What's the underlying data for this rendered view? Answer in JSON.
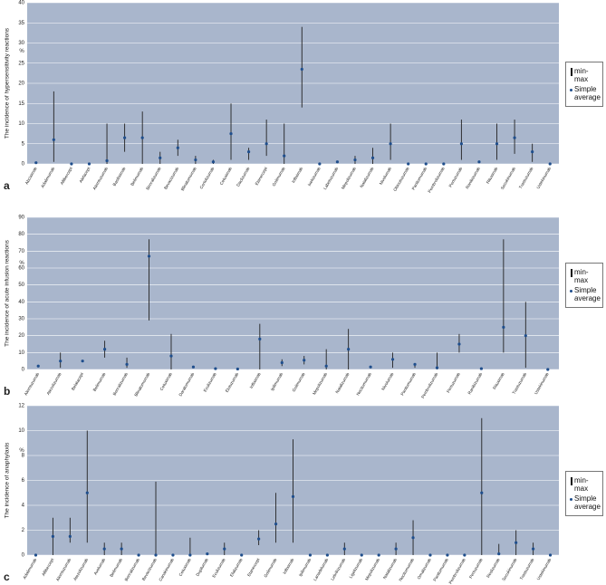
{
  "chart_data": [
    {
      "type": "range",
      "panel": "a",
      "y_label": "The incidence of hypersensitivity reactions",
      "unit": "%",
      "categories": [
        "Abciximab",
        "Adalimumab",
        "Aflibercept",
        "Alefacept",
        "Alemtuzumab",
        "Basiliximab",
        "Belimumab",
        "Benralizumab",
        "Bevacizumab",
        "Blinatumomab",
        "Certolizumab",
        "Cetuximab",
        "Daclizumab",
        "Etanercept",
        "Golimumab",
        "Infliximab",
        "Ixekizumab",
        "Labetuzumab",
        "Mepolizumab",
        "Natalizumab",
        "Nivolumab",
        "Obinutuzumab",
        "Panitumumab",
        "Pembrolizumab",
        "Pertuzumab",
        "Ranibizumab",
        "Rituximab",
        "Secukinumab",
        "Trastuzumab",
        "Ustekinumab"
      ],
      "series": [
        {
          "name": "Simple average",
          "color": "#1f4e8c",
          "values": [
            0.3,
            6,
            0,
            0,
            0.8,
            6.5,
            6.5,
            1.5,
            4,
            1,
            0.5,
            7.5,
            3,
            5,
            2,
            23.5,
            0,
            0.5,
            1,
            1.5,
            5,
            0,
            0,
            0,
            5,
            0.5,
            5,
            6.5,
            3,
            0
          ]
        }
      ],
      "range": {
        "name": "min-max",
        "color": "#222222",
        "min": [
          null,
          0.5,
          null,
          null,
          0,
          3,
          0,
          0,
          2,
          0,
          0,
          1,
          1,
          2,
          0,
          14,
          null,
          null,
          0,
          0,
          1,
          null,
          null,
          null,
          1,
          null,
          1,
          2.5,
          0.5,
          null
        ],
        "max": [
          null,
          18,
          null,
          null,
          10,
          10,
          13,
          3,
          6,
          2,
          1,
          15,
          4,
          11,
          10,
          34,
          null,
          null,
          2,
          4,
          10,
          null,
          null,
          null,
          11,
          null,
          10,
          11,
          5,
          null
        ]
      },
      "ylim": [
        0,
        40
      ],
      "yticks": [
        0,
        5,
        10,
        15,
        20,
        25,
        30,
        35,
        40
      ],
      "grid": true,
      "background": "#a9b6cc"
    },
    {
      "type": "range",
      "panel": "b",
      "y_label": "The incidence of acute infusion reactions",
      "unit": "%",
      "categories": [
        "Alemtuzumab",
        "Atezolizumab",
        "Belatacept",
        "Belimumab",
        "Benralizumab",
        "Blinatumomab",
        "Cetuximab",
        "Daratumumab",
        "Eculizumab",
        "Elotuzumab",
        "Infliximab",
        "Ipilimumab",
        "Golimumab",
        "Mepolizumab",
        "Natalizumab",
        "Necitumumab",
        "Nivolumab",
        "Panitumumab",
        "Pembrolizumab",
        "Pertuzumab",
        "Ranibizumab",
        "Rituximab",
        "Trastuzumab",
        "Ustekinumab"
      ],
      "series": [
        {
          "name": "Simple average",
          "color": "#1f4e8c",
          "values": [
            2,
            5,
            5,
            12,
            3,
            67,
            8,
            1.5,
            0.5,
            0.3,
            18,
            4,
            5.5,
            2,
            12,
            1.5,
            6,
            3,
            1,
            15,
            0.5,
            25,
            20,
            0
          ]
        }
      ],
      "range": {
        "name": "min-max",
        "color": "#222222",
        "min": [
          null,
          1,
          null,
          7,
          1,
          29,
          0,
          null,
          null,
          null,
          0,
          2,
          3,
          0,
          0,
          null,
          1,
          1,
          0,
          10,
          null,
          10,
          1,
          null
        ],
        "max": [
          null,
          10,
          null,
          17,
          7,
          77,
          21,
          null,
          null,
          null,
          27,
          6,
          8,
          12,
          24,
          null,
          10,
          3,
          10,
          21,
          null,
          77,
          40,
          null
        ]
      },
      "ylim": [
        0,
        90
      ],
      "yticks": [
        0,
        10,
        20,
        30,
        40,
        50,
        60,
        70,
        80,
        90
      ],
      "grid": true,
      "background": "#a9b6cc"
    },
    {
      "type": "range",
      "panel": "c",
      "y_label": "The incidence of anaphylaxis",
      "unit": "%",
      "categories": [
        "Adalimumab",
        "Aflibercept",
        "Alemtuzumab",
        "Atezolizumab",
        "Avelumab",
        "Belimumab",
        "Benralizumab",
        "Bevacizumab",
        "Canakinumab",
        "Cetuximab",
        "Dupilumab",
        "Eculizumab",
        "Efalizumab",
        "Etanercept",
        "Golimumab",
        "Infliximab",
        "Ipilimumab",
        "Lanadelumab",
        "Lebrikizumab",
        "Ligelizumab",
        "Mepolizumab",
        "Natalizumab",
        "Necitumumab",
        "Omalizumab",
        "Panitumumab",
        "Pembrolizumab",
        "Pertuzumab",
        "Reslizumab",
        "Secukinumab",
        "Trastuzumab",
        "Ustekinumab"
      ],
      "series": [
        {
          "name": "Simple average",
          "color": "#1f4e8c",
          "values": [
            0,
            1.5,
            1.5,
            5,
            0.5,
            0.5,
            0,
            0,
            0,
            0,
            0.1,
            0.5,
            0,
            1.3,
            2.5,
            4.7,
            0,
            0,
            0.5,
            0,
            0,
            0.5,
            1.4,
            0,
            0,
            0,
            5,
            0.1,
            1,
            0.5,
            0
          ]
        }
      ],
      "range": {
        "name": "min-max",
        "color": "#222222",
        "min": [
          null,
          0,
          1,
          1,
          0,
          0,
          null,
          0,
          null,
          0,
          null,
          0,
          null,
          0.8,
          1,
          1,
          null,
          null,
          0,
          null,
          null,
          0,
          0,
          null,
          null,
          null,
          0,
          0,
          0,
          0,
          null
        ],
        "max": [
          null,
          3,
          3,
          10,
          1,
          1,
          null,
          5.9,
          null,
          1.4,
          null,
          1,
          null,
          2,
          5,
          9.3,
          null,
          null,
          1,
          null,
          null,
          1,
          2.8,
          null,
          null,
          null,
          11,
          0.9,
          2,
          1,
          null
        ]
      },
      "ylim": [
        0,
        12
      ],
      "yticks": [
        0,
        2,
        4,
        6,
        8,
        10,
        12
      ],
      "grid": true,
      "background": "#a9b6cc"
    }
  ]
}
